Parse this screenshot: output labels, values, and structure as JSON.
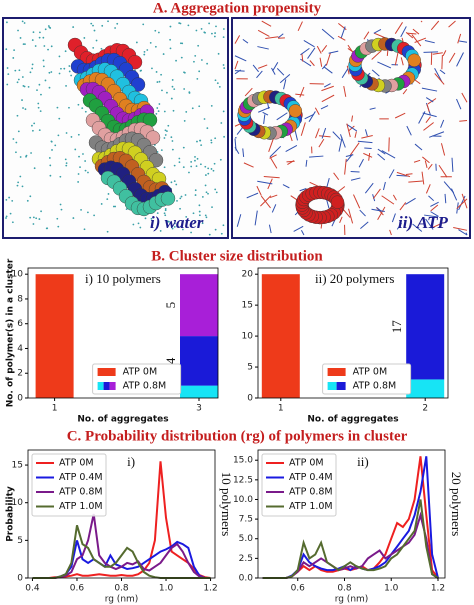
{
  "sections": {
    "a": "A. Aggregation propensity",
    "b": "B. Cluster size distribution",
    "c": "C. Probability distribution (rg) of polymers in cluster"
  },
  "images": [
    {
      "label": "i) water"
    },
    {
      "label": "ii) ATP"
    }
  ],
  "chart_data": [
    {
      "type": "bar",
      "title": "i) 10 polymers",
      "xlabel": "No. of aggregates",
      "ylabel": "No. of polymer(s) in a cluster",
      "categories": [
        "1",
        "3"
      ],
      "series": [
        {
          "name": "ATP 0M",
          "color": "#ee3a1a",
          "values": [
            10,
            null
          ]
        },
        {
          "name": "ATP 0.8M",
          "colors": [
            "#17e4f5",
            "#1a1ad8",
            "#a81fd8"
          ],
          "values": [
            null,
            [
              1,
              4,
              5
            ]
          ]
        }
      ],
      "ylim": [
        0,
        10.5
      ],
      "yticks": [
        0,
        2,
        4,
        6,
        8,
        10
      ],
      "legend": "lower center"
    },
    {
      "type": "bar",
      "title": "ii) 20 polymers",
      "xlabel": "No. of aggregates",
      "categories": [
        "1",
        "2"
      ],
      "series": [
        {
          "name": "ATP 0M",
          "color": "#ee3a1a",
          "values": [
            20,
            null
          ]
        },
        {
          "name": "ATP 0.8M",
          "colors": [
            "#17e4f5",
            "#1a1ad8"
          ],
          "values": [
            null,
            [
              3,
              17
            ]
          ]
        }
      ],
      "ylim": [
        0,
        21
      ],
      "yticks": [
        0,
        5,
        10,
        15,
        20
      ],
      "legend": "lower center"
    },
    {
      "type": "line",
      "title": "i)",
      "annotation": "10 polymers",
      "xlabel": "rg (nm)",
      "ylabel": "Probability",
      "x": [
        0.4,
        0.425,
        0.45,
        0.475,
        0.5,
        0.525,
        0.55,
        0.575,
        0.6,
        0.625,
        0.65,
        0.675,
        0.7,
        0.725,
        0.75,
        0.775,
        0.8,
        0.825,
        0.85,
        0.875,
        0.9,
        0.925,
        0.95,
        0.975,
        1.0,
        1.025,
        1.05,
        1.075,
        1.1,
        1.125,
        1.15,
        1.175,
        1.2
      ],
      "series": [
        {
          "name": "ATP 0M",
          "color": "#ee2020",
          "values": [
            0,
            0,
            0,
            0,
            0.1,
            0.1,
            0.2,
            0.3,
            0.5,
            0.3,
            0.3,
            0.4,
            0.5,
            0.4,
            0.3,
            0.3,
            0.4,
            0.3,
            0.3,
            0.5,
            1.0,
            2.0,
            5.0,
            15.5,
            8.0,
            3.5,
            3.0,
            2.5,
            2.0,
            1.2,
            0.4,
            0.1,
            0
          ]
        },
        {
          "name": "ATP 0.4M",
          "color": "#1a1ae0",
          "values": [
            0,
            0,
            0,
            0,
            0,
            0.2,
            0.5,
            1.5,
            5.0,
            2.5,
            2.0,
            2.5,
            2.0,
            1.5,
            3.0,
            1.8,
            1.5,
            1.2,
            1.3,
            1.5,
            2.0,
            2.5,
            3.0,
            3.5,
            3.8,
            4.2,
            4.8,
            4.5,
            4.0,
            1.5,
            0.3,
            0,
            0
          ]
        },
        {
          "name": "ATP 0.8M",
          "color": "#7a1a8a",
          "values": [
            0,
            0,
            0,
            0,
            0,
            0.1,
            0.3,
            0.8,
            2.5,
            3.0,
            5.0,
            8.5,
            3.0,
            2.0,
            1.5,
            1.2,
            1.5,
            2.0,
            1.8,
            2.2,
            1.2,
            1.0,
            1.5,
            2.0,
            3.0,
            4.0,
            4.5,
            3.5,
            2.0,
            0.8,
            0.2,
            0,
            0
          ]
        },
        {
          "name": "ATP 1.0M",
          "color": "#556b2f",
          "values": [
            0,
            0,
            0,
            0,
            0,
            0.2,
            0.5,
            2.0,
            7.0,
            4.5,
            4.0,
            2.5,
            2.0,
            1.5,
            1.5,
            2.0,
            3.0,
            4.0,
            3.5,
            2.0,
            0.8,
            0.3,
            0.1,
            0,
            0,
            0,
            0,
            0,
            0,
            0,
            0,
            0,
            0
          ]
        }
      ],
      "xlim": [
        0.38,
        1.22
      ],
      "xticks": [
        0.4,
        0.6,
        0.8,
        {
          "value": 1,
          "label": "1.0"
        },
        1.2
      ],
      "ylim": [
        0,
        17
      ],
      "yticks": [
        0,
        5,
        10,
        15
      ],
      "legend": "upper left"
    },
    {
      "type": "line",
      "title": "ii)",
      "annotation": "20 polymers",
      "xlabel": "rg (nm)",
      "x": [
        0.45,
        0.475,
        0.5,
        0.525,
        0.55,
        0.575,
        0.6,
        0.625,
        0.65,
        0.675,
        0.7,
        0.725,
        0.75,
        0.775,
        0.8,
        0.825,
        0.85,
        0.875,
        0.9,
        0.925,
        0.95,
        0.975,
        1.0,
        1.025,
        1.05,
        1.075,
        1.1,
        1.125,
        1.15,
        1.175,
        1.2
      ],
      "series": [
        {
          "name": "ATP 0M",
          "color": "#ee2020",
          "values": [
            0,
            0,
            0,
            0,
            0,
            0.2,
            0.8,
            1.5,
            1.0,
            1.5,
            1.0,
            0.8,
            0.8,
            1.0,
            1.2,
            1.0,
            1.2,
            1.5,
            1.0,
            1.2,
            2.0,
            3.0,
            5.0,
            7.0,
            6.5,
            7.5,
            10.0,
            15.5,
            8.0,
            1.0,
            0
          ]
        },
        {
          "name": "ATP 0.4M",
          "color": "#1a1ae0",
          "values": [
            0,
            0,
            0,
            0,
            0,
            0.3,
            1.0,
            3.0,
            2.0,
            1.5,
            1.2,
            1.0,
            1.0,
            1.2,
            1.5,
            1.0,
            1.5,
            1.2,
            1.0,
            1.2,
            1.5,
            2.0,
            3.0,
            4.0,
            5.0,
            6.0,
            8.0,
            11.0,
            15.5,
            3.0,
            0
          ]
        },
        {
          "name": "ATP 0.8M",
          "color": "#7a1a8a",
          "values": [
            0,
            0,
            0,
            0,
            0,
            0.2,
            0.8,
            2.0,
            1.5,
            2.0,
            2.5,
            2.0,
            1.5,
            1.0,
            1.2,
            1.5,
            1.2,
            1.5,
            2.5,
            3.0,
            3.5,
            2.5,
            3.0,
            3.5,
            4.0,
            4.5,
            5.5,
            8.0,
            5.0,
            0.5,
            0
          ]
        },
        {
          "name": "ATP 1.0M",
          "color": "#556b2f",
          "values": [
            0,
            0,
            0,
            0,
            0,
            0.2,
            1.0,
            4.5,
            2.5,
            3.0,
            4.5,
            2.0,
            1.5,
            1.0,
            1.5,
            2.0,
            1.5,
            1.2,
            1.0,
            1.0,
            1.2,
            1.5,
            2.5,
            3.0,
            4.0,
            5.0,
            6.0,
            10.0,
            4.0,
            0.5,
            0
          ]
        }
      ],
      "xlim": [
        0.43,
        1.23
      ],
      "xticks": [
        0.6,
        0.8,
        {
          "value": 1,
          "label": "1.0"
        },
        1.2
      ],
      "ylim": [
        0,
        16.3
      ],
      "yticks": [
        {
          "value": 0,
          "label": "0.0"
        },
        2.5,
        {
          "value": 5,
          "label": "5.0"
        },
        7.5,
        {
          "value": 10,
          "label": "10.0"
        },
        12.5,
        {
          "value": 15,
          "label": "15.0"
        }
      ],
      "legend": "upper left"
    }
  ]
}
